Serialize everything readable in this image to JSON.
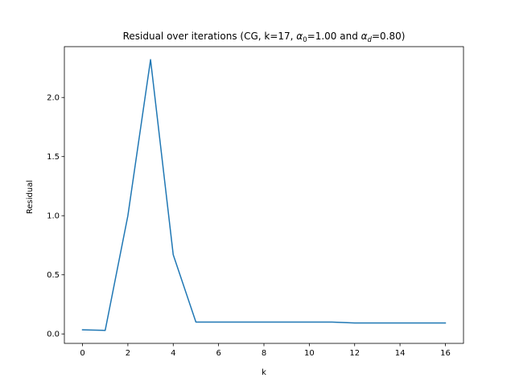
{
  "chart_data": {
    "type": "line",
    "title": {
      "prefix": "Residual over iterations (CG, k=17, ",
      "alpha0_symbol": "α",
      "alpha0_sub": "0",
      "alpha0_value": "=1.00 and ",
      "alphad_symbol": "α",
      "alphad_sub": "d",
      "alphad_value": "=0.80)"
    },
    "xlabel": "k",
    "ylabel": "Residual",
    "xlim": [
      -0.8,
      16.8
    ],
    "ylim": [
      -0.08,
      2.43
    ],
    "xticks": [
      0,
      2,
      4,
      6,
      8,
      10,
      12,
      14,
      16
    ],
    "yticks": [
      0.0,
      0.5,
      1.0,
      1.5,
      2.0
    ],
    "ytick_labels": [
      "0.0",
      "0.5",
      "1.0",
      "1.5",
      "2.0"
    ],
    "grid": false,
    "series": [
      {
        "color": "#1f77b4",
        "x": [
          0,
          1,
          2,
          3,
          4,
          5,
          6,
          7,
          8,
          9,
          10,
          11,
          12,
          13,
          14,
          15,
          16
        ],
        "y": [
          0.035,
          0.03,
          1.0,
          2.32,
          0.67,
          0.1,
          0.1,
          0.1,
          0.1,
          0.1,
          0.1,
          0.1,
          0.093,
          0.093,
          0.093,
          0.093,
          0.093
        ]
      }
    ]
  }
}
